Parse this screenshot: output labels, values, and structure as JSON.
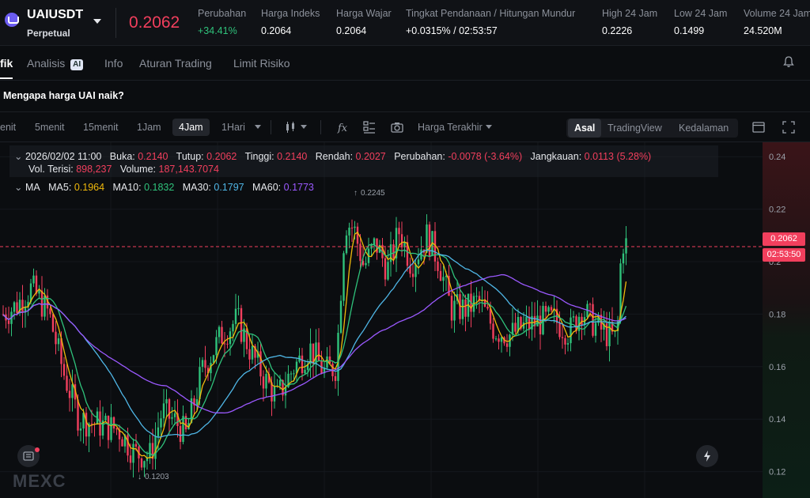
{
  "header": {
    "symbol": "UAIUSDT",
    "contract_type": "Perpetual",
    "last_price": "0.2062",
    "stats": [
      {
        "label": "Perubahan",
        "value": "+34.41%"
      },
      {
        "label": "Harga Indeks",
        "value": "0.2064"
      },
      {
        "label": "Harga Wajar",
        "value": "0.2064"
      },
      {
        "label": "Tingkat Pendanaan / Hitungan Mundur",
        "value": "+0.0315% / 02:53:57"
      },
      {
        "label": "High 24 Jam",
        "value": "0.2226"
      },
      {
        "label": "Low 24 Jam",
        "value": "0.1499"
      },
      {
        "label": "Volume 24 Jam",
        "value": "24.520M"
      }
    ]
  },
  "tabs": [
    {
      "label": "fik",
      "active": true
    },
    {
      "label": "Analisis",
      "badge": "AI"
    },
    {
      "label": "Info"
    },
    {
      "label": "Aturan Trading"
    },
    {
      "label": "Limit Risiko"
    }
  ],
  "question": "Mengapa harga UAI naik?",
  "toolbar": {
    "timeframes": [
      "enit",
      "5menit",
      "15menit",
      "1Jam",
      "4Jam",
      "1Hari"
    ],
    "active_timeframe": "4Jam",
    "price_type": "Harga Terakhir",
    "views": [
      "Asal",
      "TradingView",
      "Kedalaman"
    ],
    "active_view": "Asal"
  },
  "ohlc": {
    "date": "2026/02/02 11:00",
    "open_label": "Buka:",
    "open": "0.2140",
    "close_label": "Tutup:",
    "close": "0.2062",
    "high_label": "Tinggi:",
    "high": "0.2140",
    "low_label": "Rendah:",
    "low": "0.2027",
    "change_label": "Perubahan:",
    "change": "-0.0078 (-3.64%)",
    "range_label": "Jangkauan:",
    "range": "0.0113 (5.28%)",
    "filled_vol_label": "Vol. Terisi:",
    "filled_vol": "898,237",
    "volume_label": "Volume:",
    "volume": "187,143.7074"
  },
  "ma": {
    "label": "MA",
    "ma5_label": "MA5:",
    "ma5": "0.1964",
    "ma10_label": "MA10:",
    "ma10": "0.1832",
    "ma30_label": "MA30:",
    "ma30": "0.1797",
    "ma60_label": "MA60:",
    "ma60": "0.1773"
  },
  "chart": {
    "current_price_tag": "0.2062",
    "countdown_tag": "02:53:50",
    "max_marker": "0.2245",
    "min_marker": "0.1203",
    "y_ticks": [
      "0.24",
      "0.22",
      "0.2",
      "0.18",
      "0.16",
      "0.14",
      "0.12"
    ],
    "colors": {
      "up": "#2fc27b",
      "down": "#f23f5d",
      "ma5": "#f0b90b",
      "ma10": "#2fc27b",
      "ma30": "#4fb6e6",
      "ma60": "#9b59ff"
    }
  },
  "watermark": "MEXC"
}
